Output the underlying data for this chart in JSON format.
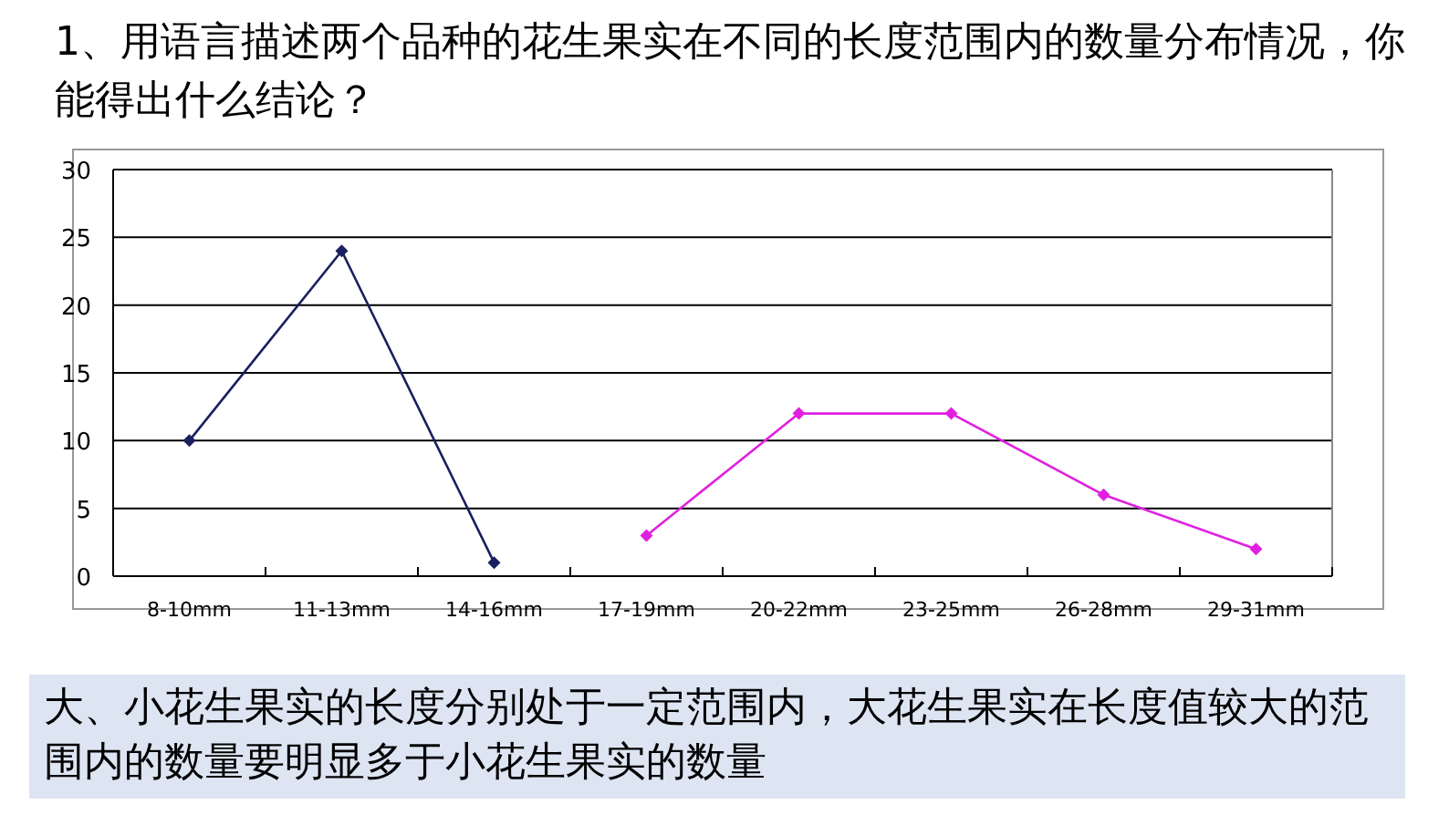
{
  "chart_data": {
    "type": "line",
    "title": "1、用语言描述两个品种的花生果实在不同的长度范围内的数量分布情况，你能得出什么结论？",
    "categories": [
      "8-10mm",
      "11-13mm",
      "14-16mm",
      "17-19mm",
      "20-22mm",
      "23-25mm",
      "26-28mm",
      "29-31mm"
    ],
    "series": [
      {
        "color": "#1a1f5e",
        "values": [
          10,
          24,
          1,
          null,
          null,
          null,
          null,
          null
        ]
      },
      {
        "color": "#e020e0",
        "values": [
          null,
          null,
          null,
          3,
          12,
          12,
          6,
          2
        ]
      }
    ],
    "ylim": [
      0,
      30
    ],
    "yticks": [
      0,
      5,
      10,
      15,
      20,
      25,
      30
    ],
    "grid": "y",
    "marker": "diamond",
    "annotations": [
      "大、小花生果实的长度分别处于一定范围内，大花生果实在长度值较大的范围内的数量要明显多于小花生果实的数量"
    ]
  }
}
